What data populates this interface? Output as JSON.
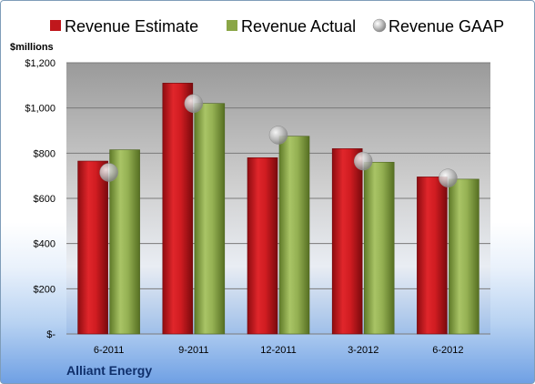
{
  "chart_data": {
    "type": "bar",
    "title": "",
    "ylabel": "$millions",
    "xlabel": "",
    "company": "Alliant Energy",
    "categories": [
      "6-2011",
      "9-2011",
      "12-2011",
      "3-2012",
      "6-2012"
    ],
    "series": [
      {
        "name": "Revenue Estimate",
        "kind": "bar",
        "color": "#c0171c",
        "values": [
          765,
          1110,
          780,
          820,
          695
        ]
      },
      {
        "name": "Revenue Actual",
        "kind": "bar",
        "color": "#8aa646",
        "values": [
          815,
          1020,
          875,
          760,
          685
        ]
      },
      {
        "name": "Revenue GAAP",
        "kind": "marker",
        "color": "#b8b8b8",
        "values": [
          715,
          1020,
          880,
          765,
          690
        ]
      }
    ],
    "yticks": [
      {
        "value": 0,
        "label": "$-"
      },
      {
        "value": 200,
        "label": "$200"
      },
      {
        "value": 400,
        "label": "$400"
      },
      {
        "value": 600,
        "label": "$600"
      },
      {
        "value": 800,
        "label": "$800"
      },
      {
        "value": 1000,
        "label": "$1,000"
      },
      {
        "value": 1200,
        "label": "$1,200"
      }
    ],
    "ylim": [
      0,
      1200
    ],
    "grid": true,
    "legend": "top"
  }
}
